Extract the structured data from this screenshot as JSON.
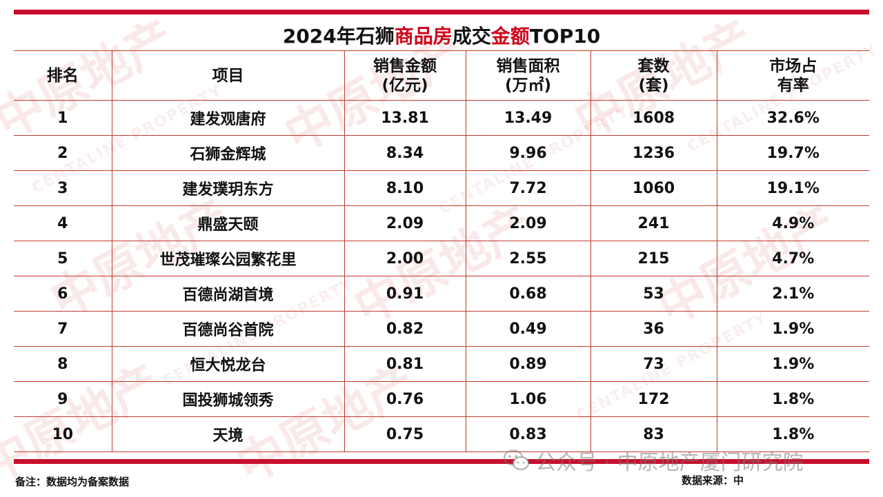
{
  "title": {
    "part1": "2024年石狮",
    "part2": "商品房",
    "part3": "成交",
    "part4": "金额",
    "part5": "TOP10"
  },
  "table": {
    "headers": {
      "rank": "排名",
      "project": "项目",
      "amount": [
        "销售金额",
        "(亿元)"
      ],
      "area": [
        "销售面积",
        "(万㎡)"
      ],
      "units": [
        "套数",
        "(套)"
      ],
      "share": [
        "市场占",
        "有率"
      ]
    },
    "rows": [
      {
        "rank": "1",
        "project": "建发观唐府",
        "amount": "13.81",
        "area": "13.49",
        "units": "1608",
        "share": "32.6%"
      },
      {
        "rank": "2",
        "project": "石狮金辉城",
        "amount": "8.34",
        "area": "9.96",
        "units": "1236",
        "share": "19.7%"
      },
      {
        "rank": "3",
        "project": "建发璞玥东方",
        "amount": "8.10",
        "area": "7.72",
        "units": "1060",
        "share": "19.1%"
      },
      {
        "rank": "4",
        "project": "鼎盛天颐",
        "amount": "2.09",
        "area": "2.09",
        "units": "241",
        "share": "4.9%"
      },
      {
        "rank": "5",
        "project": "世茂璀璨公园繁花里",
        "amount": "2.00",
        "area": "2.55",
        "units": "215",
        "share": "4.7%"
      },
      {
        "rank": "6",
        "project": "百德尚湖首境",
        "amount": "0.91",
        "area": "0.68",
        "units": "53",
        "share": "2.1%"
      },
      {
        "rank": "7",
        "project": "百德尚谷首院",
        "amount": "0.82",
        "area": "0.49",
        "units": "36",
        "share": "1.9%"
      },
      {
        "rank": "8",
        "project": "恒大悦龙台",
        "amount": "0.81",
        "area": "0.89",
        "units": "73",
        "share": "1.9%"
      },
      {
        "rank": "9",
        "project": "国投狮城领秀",
        "amount": "0.76",
        "area": "1.06",
        "units": "172",
        "share": "1.8%"
      },
      {
        "rank": "10",
        "project": "天境",
        "amount": "0.75",
        "area": "0.83",
        "units": "83",
        "share": "1.8%"
      }
    ]
  },
  "footer": {
    "note": "备注：数据均为备案数据",
    "source": "数据来源：中"
  },
  "wechat_overlay": {
    "text": "公众号 · 中原地产厦门研究院",
    "icon": "wechat-icon"
  },
  "watermark": {
    "brand_cn": "中原地产",
    "brand_en": "CENTALINE PROPERTY"
  },
  "colors": {
    "accent": "#d0021b",
    "bar": "#c8102e",
    "border": "#c0392b"
  }
}
